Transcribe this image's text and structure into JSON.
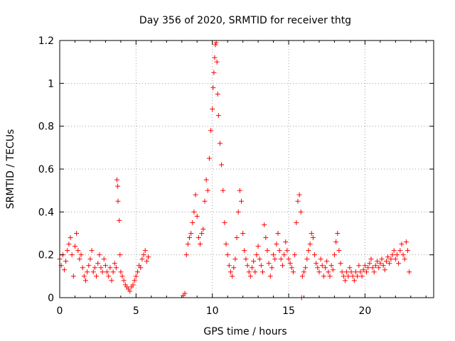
{
  "chart_data": {
    "type": "scatter",
    "title": "Day 356 of 2020, SRMTID for receiver thtg",
    "xlabel": "GPS time / hours",
    "ylabel": "SRMTID / TECUs",
    "xlim": [
      0,
      24.5
    ],
    "ylim": [
      0,
      1.2
    ],
    "xticks": [
      0,
      5,
      10,
      15,
      20
    ],
    "xtick_labels": [
      "0",
      "5",
      "10",
      "15",
      "20"
    ],
    "yticks": [
      0,
      0.2,
      0.4,
      0.6,
      0.8,
      1.0,
      1.2
    ],
    "ytick_labels": [
      "0",
      "0.2",
      "0.4",
      "0.6",
      "0.8",
      "1",
      "1.2"
    ],
    "grid": true,
    "marker": "plus",
    "color": "#ff0000",
    "series": [
      {
        "name": "SRMTID",
        "points": [
          [
            0.0,
            0.18
          ],
          [
            0.1,
            0.15
          ],
          [
            0.2,
            0.2
          ],
          [
            0.3,
            0.13
          ],
          [
            0.4,
            0.17
          ],
          [
            0.5,
            0.22
          ],
          [
            0.6,
            0.25
          ],
          [
            0.7,
            0.28
          ],
          [
            0.8,
            0.2
          ],
          [
            0.9,
            0.1
          ],
          [
            1.0,
            0.24
          ],
          [
            1.1,
            0.3
          ],
          [
            1.2,
            0.22
          ],
          [
            1.3,
            0.18
          ],
          [
            1.4,
            0.2
          ],
          [
            1.5,
            0.14
          ],
          [
            1.6,
            0.1
          ],
          [
            1.7,
            0.08
          ],
          [
            1.8,
            0.12
          ],
          [
            1.9,
            0.15
          ],
          [
            2.0,
            0.18
          ],
          [
            2.1,
            0.22
          ],
          [
            2.2,
            0.12
          ],
          [
            2.3,
            0.14
          ],
          [
            2.4,
            0.1
          ],
          [
            2.5,
            0.16
          ],
          [
            2.6,
            0.2
          ],
          [
            2.7,
            0.14
          ],
          [
            2.8,
            0.12
          ],
          [
            2.9,
            0.18
          ],
          [
            3.0,
            0.15
          ],
          [
            3.1,
            0.12
          ],
          [
            3.2,
            0.1
          ],
          [
            3.3,
            0.14
          ],
          [
            3.4,
            0.08
          ],
          [
            3.5,
            0.12
          ],
          [
            3.6,
            0.16
          ],
          [
            3.7,
            0.14
          ],
          [
            3.75,
            0.55
          ],
          [
            3.8,
            0.52
          ],
          [
            3.82,
            0.45
          ],
          [
            3.9,
            0.36
          ],
          [
            3.95,
            0.2
          ],
          [
            4.0,
            0.12
          ],
          [
            4.1,
            0.1
          ],
          [
            4.2,
            0.08
          ],
          [
            4.3,
            0.06
          ],
          [
            4.4,
            0.05
          ],
          [
            4.5,
            0.04
          ],
          [
            4.6,
            0.03
          ],
          [
            4.7,
            0.05
          ],
          [
            4.8,
            0.06
          ],
          [
            4.9,
            0.08
          ],
          [
            5.0,
            0.1
          ],
          [
            5.1,
            0.12
          ],
          [
            5.2,
            0.15
          ],
          [
            5.3,
            0.14
          ],
          [
            5.4,
            0.18
          ],
          [
            5.5,
            0.2
          ],
          [
            5.6,
            0.22
          ],
          [
            5.7,
            0.17
          ],
          [
            5.8,
            0.19
          ],
          [
            8.1,
            0.01
          ],
          [
            8.2,
            0.02
          ],
          [
            8.3,
            0.2
          ],
          [
            8.4,
            0.25
          ],
          [
            8.5,
            0.28
          ],
          [
            8.6,
            0.3
          ],
          [
            8.7,
            0.35
          ],
          [
            8.8,
            0.4
          ],
          [
            8.9,
            0.48
          ],
          [
            9.0,
            0.38
          ],
          [
            9.1,
            0.28
          ],
          [
            9.2,
            0.25
          ],
          [
            9.3,
            0.3
          ],
          [
            9.4,
            0.32
          ],
          [
            9.5,
            0.45
          ],
          [
            9.6,
            0.55
          ],
          [
            9.7,
            0.5
          ],
          [
            9.8,
            0.65
          ],
          [
            9.9,
            0.78
          ],
          [
            10.0,
            0.88
          ],
          [
            10.05,
            0.98
          ],
          [
            10.1,
            1.05
          ],
          [
            10.15,
            1.12
          ],
          [
            10.2,
            1.18
          ],
          [
            10.25,
            1.19
          ],
          [
            10.3,
            1.1
          ],
          [
            10.35,
            0.95
          ],
          [
            10.4,
            0.85
          ],
          [
            10.5,
            0.72
          ],
          [
            10.6,
            0.62
          ],
          [
            10.7,
            0.5
          ],
          [
            10.8,
            0.35
          ],
          [
            10.9,
            0.25
          ],
          [
            11.0,
            0.2
          ],
          [
            11.1,
            0.15
          ],
          [
            11.2,
            0.12
          ],
          [
            11.3,
            0.1
          ],
          [
            11.4,
            0.14
          ],
          [
            11.5,
            0.18
          ],
          [
            11.6,
            0.28
          ],
          [
            11.7,
            0.4
          ],
          [
            11.8,
            0.5
          ],
          [
            11.9,
            0.45
          ],
          [
            12.0,
            0.3
          ],
          [
            12.1,
            0.22
          ],
          [
            12.2,
            0.18
          ],
          [
            12.3,
            0.15
          ],
          [
            12.4,
            0.12
          ],
          [
            12.5,
            0.1
          ],
          [
            12.6,
            0.14
          ],
          [
            12.7,
            0.17
          ],
          [
            12.8,
            0.12
          ],
          [
            12.9,
            0.2
          ],
          [
            13.0,
            0.24
          ],
          [
            13.1,
            0.18
          ],
          [
            13.2,
            0.15
          ],
          [
            13.3,
            0.12
          ],
          [
            13.4,
            0.34
          ],
          [
            13.5,
            0.28
          ],
          [
            13.6,
            0.22
          ],
          [
            13.7,
            0.16
          ],
          [
            13.8,
            0.1
          ],
          [
            13.9,
            0.14
          ],
          [
            14.0,
            0.2
          ],
          [
            14.1,
            0.18
          ],
          [
            14.2,
            0.25
          ],
          [
            14.3,
            0.3
          ],
          [
            14.4,
            0.22
          ],
          [
            14.5,
            0.18
          ],
          [
            14.6,
            0.15
          ],
          [
            14.7,
            0.2
          ],
          [
            14.8,
            0.26
          ],
          [
            14.9,
            0.22
          ],
          [
            15.0,
            0.18
          ],
          [
            15.1,
            0.16
          ],
          [
            15.2,
            0.14
          ],
          [
            15.3,
            0.12
          ],
          [
            15.4,
            0.2
          ],
          [
            15.5,
            0.35
          ],
          [
            15.6,
            0.45
          ],
          [
            15.7,
            0.48
          ],
          [
            15.8,
            0.4
          ],
          [
            15.85,
            0.0
          ],
          [
            15.9,
            0.1
          ],
          [
            16.0,
            0.12
          ],
          [
            16.1,
            0.14
          ],
          [
            16.2,
            0.18
          ],
          [
            16.3,
            0.22
          ],
          [
            16.4,
            0.25
          ],
          [
            16.5,
            0.3
          ],
          [
            16.6,
            0.28
          ],
          [
            16.7,
            0.2
          ],
          [
            16.8,
            0.16
          ],
          [
            16.9,
            0.14
          ],
          [
            17.0,
            0.12
          ],
          [
            17.1,
            0.18
          ],
          [
            17.2,
            0.15
          ],
          [
            17.3,
            0.1
          ],
          [
            17.4,
            0.14
          ],
          [
            17.5,
            0.17
          ],
          [
            17.6,
            0.12
          ],
          [
            17.7,
            0.1
          ],
          [
            17.8,
            0.15
          ],
          [
            17.9,
            0.13
          ],
          [
            18.0,
            0.2
          ],
          [
            18.1,
            0.26
          ],
          [
            18.2,
            0.3
          ],
          [
            18.3,
            0.22
          ],
          [
            18.4,
            0.16
          ],
          [
            18.5,
            0.12
          ],
          [
            18.6,
            0.1
          ],
          [
            18.7,
            0.08
          ],
          [
            18.8,
            0.12
          ],
          [
            18.9,
            0.1
          ],
          [
            19.0,
            0.14
          ],
          [
            19.1,
            0.12
          ],
          [
            19.2,
            0.1
          ],
          [
            19.3,
            0.08
          ],
          [
            19.4,
            0.12
          ],
          [
            19.5,
            0.1
          ],
          [
            19.6,
            0.15
          ],
          [
            19.7,
            0.12
          ],
          [
            19.8,
            0.1
          ],
          [
            19.9,
            0.13
          ],
          [
            20.0,
            0.15
          ],
          [
            20.1,
            0.12
          ],
          [
            20.2,
            0.14
          ],
          [
            20.3,
            0.16
          ],
          [
            20.4,
            0.18
          ],
          [
            20.5,
            0.14
          ],
          [
            20.6,
            0.12
          ],
          [
            20.7,
            0.15
          ],
          [
            20.8,
            0.17
          ],
          [
            20.9,
            0.14
          ],
          [
            21.0,
            0.16
          ],
          [
            21.1,
            0.18
          ],
          [
            21.2,
            0.15
          ],
          [
            21.3,
            0.13
          ],
          [
            21.4,
            0.17
          ],
          [
            21.5,
            0.19
          ],
          [
            21.6,
            0.16
          ],
          [
            21.7,
            0.18
          ],
          [
            21.8,
            0.2
          ],
          [
            21.9,
            0.22
          ],
          [
            22.0,
            0.18
          ],
          [
            22.1,
            0.2
          ],
          [
            22.2,
            0.16
          ],
          [
            22.3,
            0.22
          ],
          [
            22.4,
            0.25
          ],
          [
            22.5,
            0.2
          ],
          [
            22.6,
            0.18
          ],
          [
            22.7,
            0.26
          ],
          [
            22.8,
            0.22
          ],
          [
            22.9,
            0.12
          ]
        ]
      }
    ]
  }
}
